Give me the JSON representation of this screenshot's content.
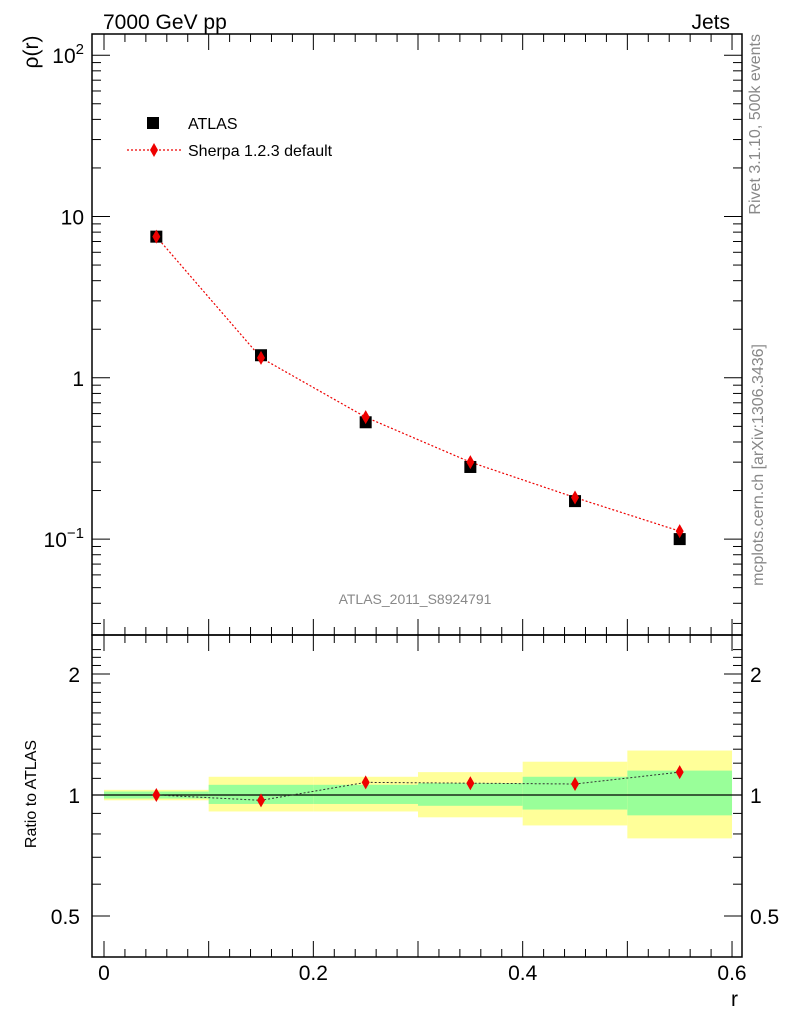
{
  "header": {
    "left": "7000 GeV pp",
    "right": "Jets"
  },
  "side_labels": {
    "rivet": "Rivet 3.1.10,  500k events",
    "mcplots": "mcplots.cern.ch [arXiv:1306.3436]"
  },
  "analysis_tag": "ATLAS_2011_S8924791",
  "axis_labels": {
    "main_y_base": "ρ(r)",
    "ratio_y": "Ratio to ATLAS",
    "x": "r"
  },
  "main_tick_labels": [
    {
      "value": 100,
      "base": "10",
      "exp": "2"
    },
    {
      "value": 10,
      "base": "10",
      "exp": ""
    },
    {
      "value": 1,
      "base": "1",
      "exp": ""
    },
    {
      "value": 0.1,
      "base": "10",
      "exp": "−1"
    }
  ],
  "ratio_tick_labels": [
    {
      "value": 2,
      "label": "2"
    },
    {
      "value": 1,
      "label": "1"
    },
    {
      "value": 0.5,
      "label": "0.5"
    }
  ],
  "x_tick_labels": [
    {
      "value": 0,
      "label": "0"
    },
    {
      "value": 0.2,
      "label": "0.2"
    },
    {
      "value": 0.4,
      "label": "0.4"
    },
    {
      "value": 0.6,
      "label": "0.6"
    }
  ],
  "legend": {
    "placement": "top-left",
    "entries": [
      {
        "label": "ATLAS",
        "marker": "square",
        "color": "#000000"
      },
      {
        "label": "Sherpa 1.2.3 default",
        "marker": "diamond",
        "color": "#ee0000"
      }
    ]
  },
  "colors": {
    "data": "#000000",
    "mc": "#ee0000",
    "band_inner": "#99ff99",
    "band_outer": "#ffff99"
  },
  "chart_data": [
    {
      "type": "scatter",
      "log_y": true,
      "xlim": [
        -0.01,
        0.6
      ],
      "ylim": [
        0.03,
        130
      ],
      "series": [
        {
          "name": "ATLAS",
          "x": [
            0.05,
            0.15,
            0.25,
            0.35,
            0.45,
            0.55
          ],
          "y": [
            7.5,
            1.38,
            0.53,
            0.28,
            0.172,
            0.1
          ]
        },
        {
          "name": "Sherpa 1.2.3 default",
          "x": [
            0.05,
            0.15,
            0.25,
            0.35,
            0.45,
            0.55
          ],
          "y": [
            7.5,
            1.33,
            0.57,
            0.3,
            0.181,
            0.112
          ]
        }
      ]
    },
    {
      "type": "line",
      "log_y": true,
      "xlim": [
        -0.01,
        0.6
      ],
      "ylim": [
        0.42,
        2.4
      ],
      "reference": 1.0,
      "bins": [
        {
          "lo": 0.0,
          "hi": 0.1,
          "inner": [
            0.98,
            1.02
          ],
          "outer": [
            0.97,
            1.03
          ]
        },
        {
          "lo": 0.1,
          "hi": 0.2,
          "inner": [
            0.95,
            1.06
          ],
          "outer": [
            0.91,
            1.11
          ]
        },
        {
          "lo": 0.2,
          "hi": 0.3,
          "inner": [
            0.95,
            1.06
          ],
          "outer": [
            0.91,
            1.11
          ]
        },
        {
          "lo": 0.3,
          "hi": 0.4,
          "inner": [
            0.94,
            1.07
          ],
          "outer": [
            0.88,
            1.14
          ]
        },
        {
          "lo": 0.4,
          "hi": 0.5,
          "inner": [
            0.92,
            1.11
          ],
          "outer": [
            0.84,
            1.21
          ]
        },
        {
          "lo": 0.5,
          "hi": 0.6,
          "inner": [
            0.89,
            1.15
          ],
          "outer": [
            0.78,
            1.29
          ]
        }
      ],
      "series": [
        {
          "name": "Sherpa 1.2.3 default",
          "x": [
            0.05,
            0.15,
            0.25,
            0.35,
            0.45,
            0.55
          ],
          "y": [
            1.0,
            0.97,
            1.075,
            1.07,
            1.065,
            1.14
          ]
        }
      ]
    }
  ]
}
